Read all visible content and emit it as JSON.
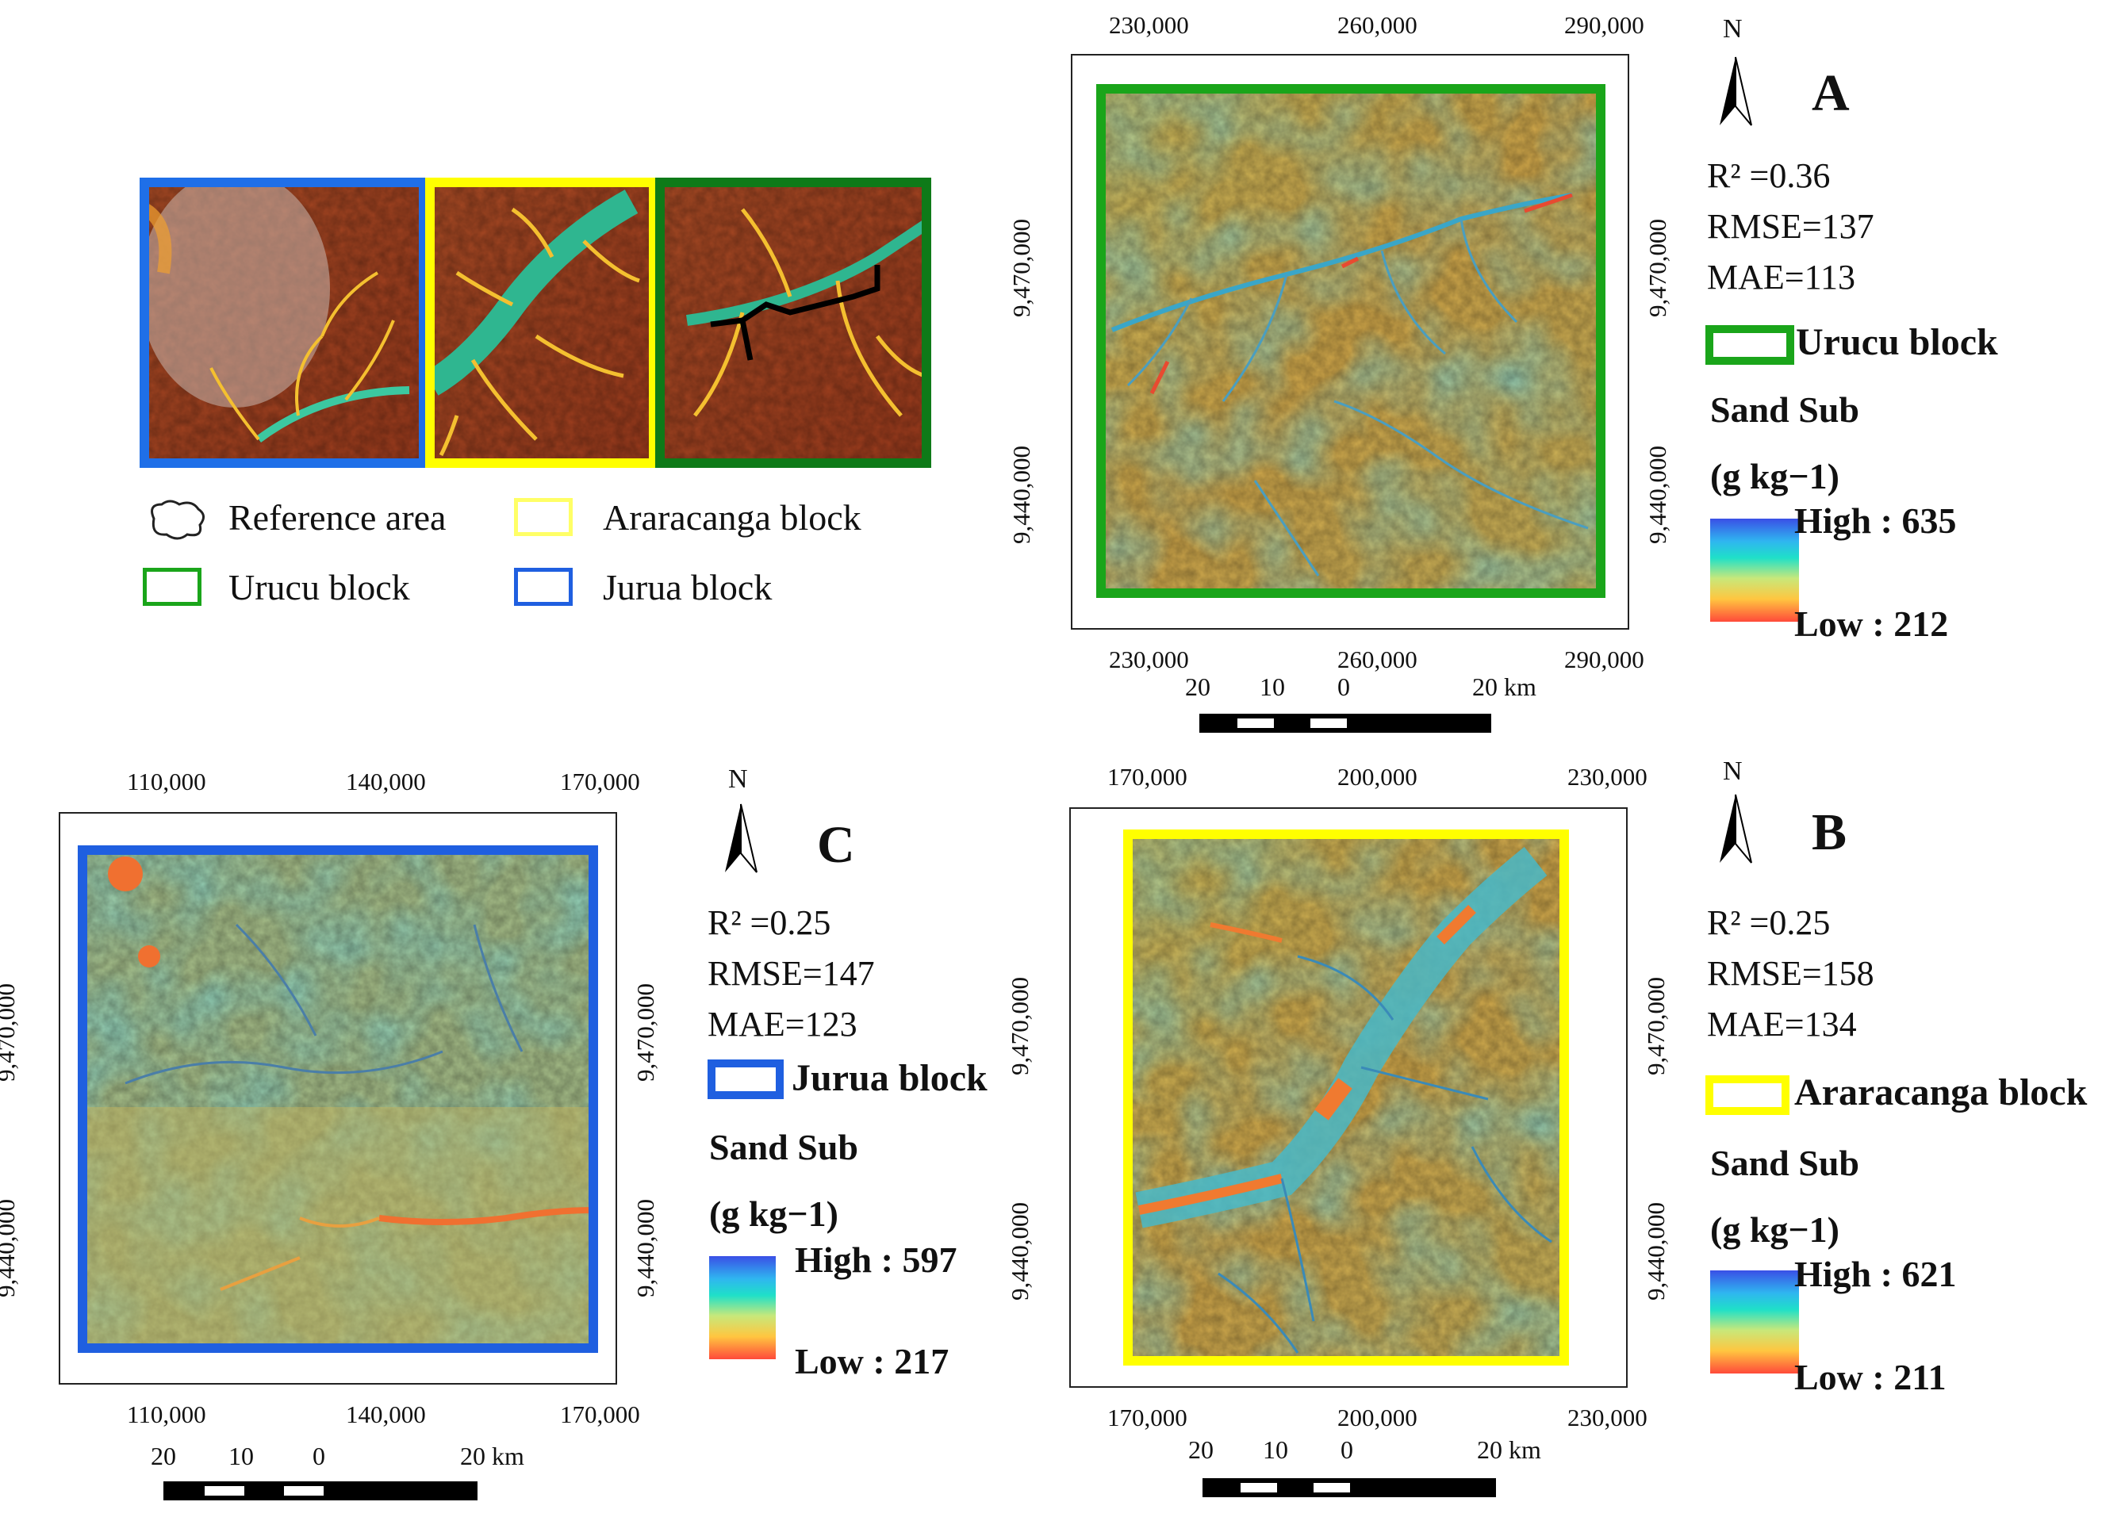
{
  "overview": {
    "legend": [
      {
        "label": "Reference area",
        "style": "outline-shape"
      },
      {
        "label": "Araracanga block",
        "color": "#ffff66"
      },
      {
        "label": "Urucu block",
        "color": "#1aa51a"
      },
      {
        "label": "Jurua block",
        "color": "#1f5fe0"
      }
    ],
    "panel_colors": [
      "#1f6fe8",
      "#ffff00",
      "#0e7a18"
    ]
  },
  "panels": {
    "A": {
      "letter": "A",
      "x_ticks": [
        "230,000",
        "260,000",
        "290,000"
      ],
      "y_ticks": [
        "9,470,000",
        "9,440,000"
      ],
      "r2": "R² =0.36",
      "rmse": "RMSE=137",
      "mae": "MAE=113",
      "block": "Urucu block",
      "block_color": "#1aa51a",
      "var1": "Sand Sub",
      "var2": "(g kg−1)",
      "high": "High : 635",
      "low": "Low : 212",
      "scale": {
        "a": "20",
        "b": "10",
        "c": "0",
        "d": "20 km"
      }
    },
    "B": {
      "letter": "B",
      "x_ticks": [
        "170,000",
        "200,000",
        "230,000"
      ],
      "y_ticks": [
        "9,470,000",
        "9,440,000"
      ],
      "r2": "R² =0.25",
      "rmse": "RMSE=158",
      "mae": "MAE=134",
      "block": "Araracanga block",
      "block_color": "#ffff00",
      "var1": "Sand Sub",
      "var2": "(g kg−1)",
      "high": "High : 621",
      "low": "Low : 211",
      "scale": {
        "a": "20",
        "b": "10",
        "c": "0",
        "d": "20 km"
      }
    },
    "C": {
      "letter": "C",
      "x_ticks": [
        "110,000",
        "140,000",
        "170,000"
      ],
      "y_ticks": [
        "9,470,000",
        "9,440,000"
      ],
      "r2": "R² =0.25",
      "rmse": "RMSE=147",
      "mae": "MAE=123",
      "block": "Jurua block",
      "block_color": "#1f5fe0",
      "var1": "Sand Sub",
      "var2": "(g kg−1)",
      "high": "High : 597",
      "low": "Low : 217",
      "scale": {
        "a": "20",
        "b": "10",
        "c": "0",
        "d": "20 km"
      }
    }
  },
  "north_label": "N"
}
